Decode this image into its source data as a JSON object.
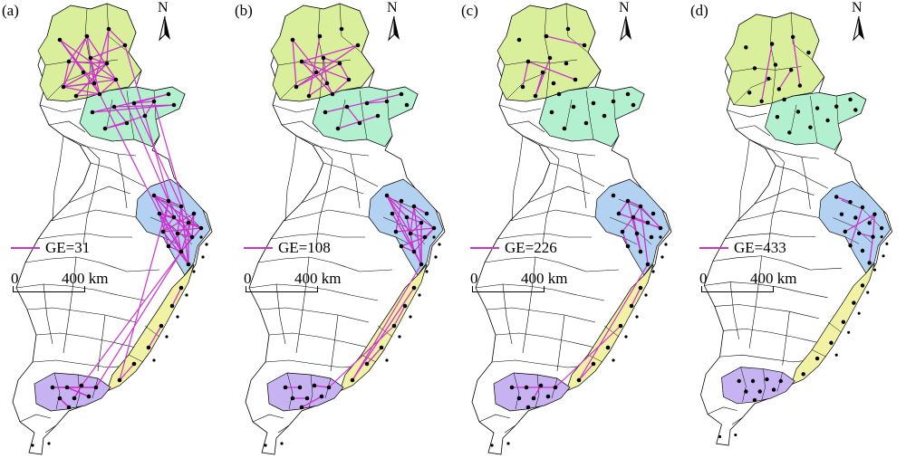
{
  "figure": {
    "panels": [
      {
        "label": "(a)",
        "legend": "GE=31",
        "scale_start": "0",
        "scale_end": "400 km",
        "north": "N",
        "connections": {
          "NJJ": 26,
          "SD": 9,
          "YRD": 40,
          "FJ": 3,
          "PRD": 12
        }
      },
      {
        "label": "(b)",
        "legend": "GE=108",
        "scale_start": "0",
        "scale_end": "400 km",
        "north": "N",
        "connections": {
          "NJJ": 14,
          "SD": 4,
          "YRD": 22,
          "FJ": 4,
          "PRD": 5
        }
      },
      {
        "label": "(c)",
        "legend": "GE=226",
        "scale_start": "0",
        "scale_end": "400 km",
        "north": "N",
        "connections": {
          "NJJ": 5,
          "SD": 0,
          "YRD": 15,
          "FJ": 2,
          "PRD": 2
        }
      },
      {
        "label": "(d)",
        "legend": "GE=433",
        "scale_start": "0",
        "scale_end": "400 km",
        "north": "N",
        "connections": {
          "NJJ": 3,
          "SD": 0,
          "YRD": 8,
          "FJ": 0,
          "PRD": 0
        }
      }
    ]
  },
  "colors": {
    "north_region": "#d9ef9c",
    "shandong_region": "#b3f0cf",
    "yangtze_region": "#b3d2f2",
    "fujian_region": "#f2f2a4",
    "pearl_region": "#c7b3f2",
    "outline": "#000000",
    "edge": "#cc33cc",
    "node": "#000000"
  },
  "icons": {
    "north_arrow": "north-arrow-icon"
  }
}
